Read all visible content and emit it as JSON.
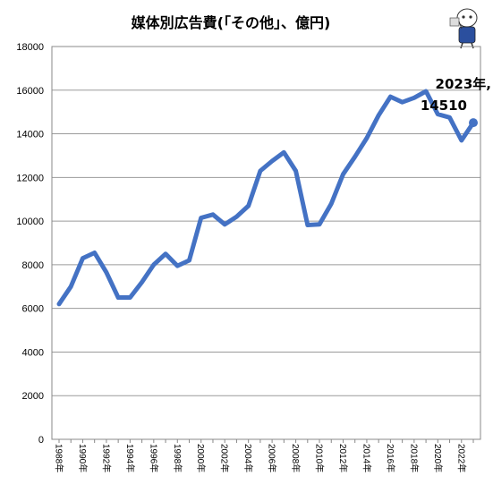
{
  "chart_data": {
    "type": "line",
    "title": "媒体別広告費(｢その他｣、億円)",
    "x_label_suffix": "年",
    "ylim": [
      0,
      18000
    ],
    "yticks": [
      0,
      2000,
      4000,
      6000,
      8000,
      10000,
      12000,
      14000,
      16000,
      18000
    ],
    "x": [
      1988,
      1989,
      1990,
      1991,
      1992,
      1993,
      1994,
      1995,
      1996,
      1997,
      1998,
      1999,
      2000,
      2001,
      2002,
      2003,
      2004,
      2005,
      2006,
      2007,
      2008,
      2009,
      2010,
      2011,
      2012,
      2013,
      2014,
      2015,
      2016,
      2017,
      2018,
      2019,
      2020,
      2021,
      2022,
      2023
    ],
    "xtick_labels": [
      "1988年",
      "1990年",
      "1992年",
      "1994年",
      "1996年",
      "1998年",
      "2000年",
      "2002年",
      "2004年",
      "2006年",
      "2008年",
      "2010年",
      "2012年",
      "2014年",
      "2016年",
      "2018年",
      "2020年",
      "2022年"
    ],
    "series": [
      {
        "values": [
          6200,
          7000,
          8300,
          8550,
          7650,
          6500,
          6500,
          7200,
          8000,
          8500,
          7950,
          8200,
          10150,
          10300,
          9850,
          10200,
          10700,
          12300,
          12750,
          13150,
          12300,
          9820,
          9850,
          10800,
          12150,
          12950,
          13800,
          14850,
          15700,
          15450,
          15650,
          15950,
          14900,
          14750,
          13700,
          14510
        ],
        "color": "#4472c4"
      }
    ],
    "annotation": {
      "line1": "2023年,",
      "line2": "14510"
    },
    "grid": true,
    "legend": "none"
  }
}
